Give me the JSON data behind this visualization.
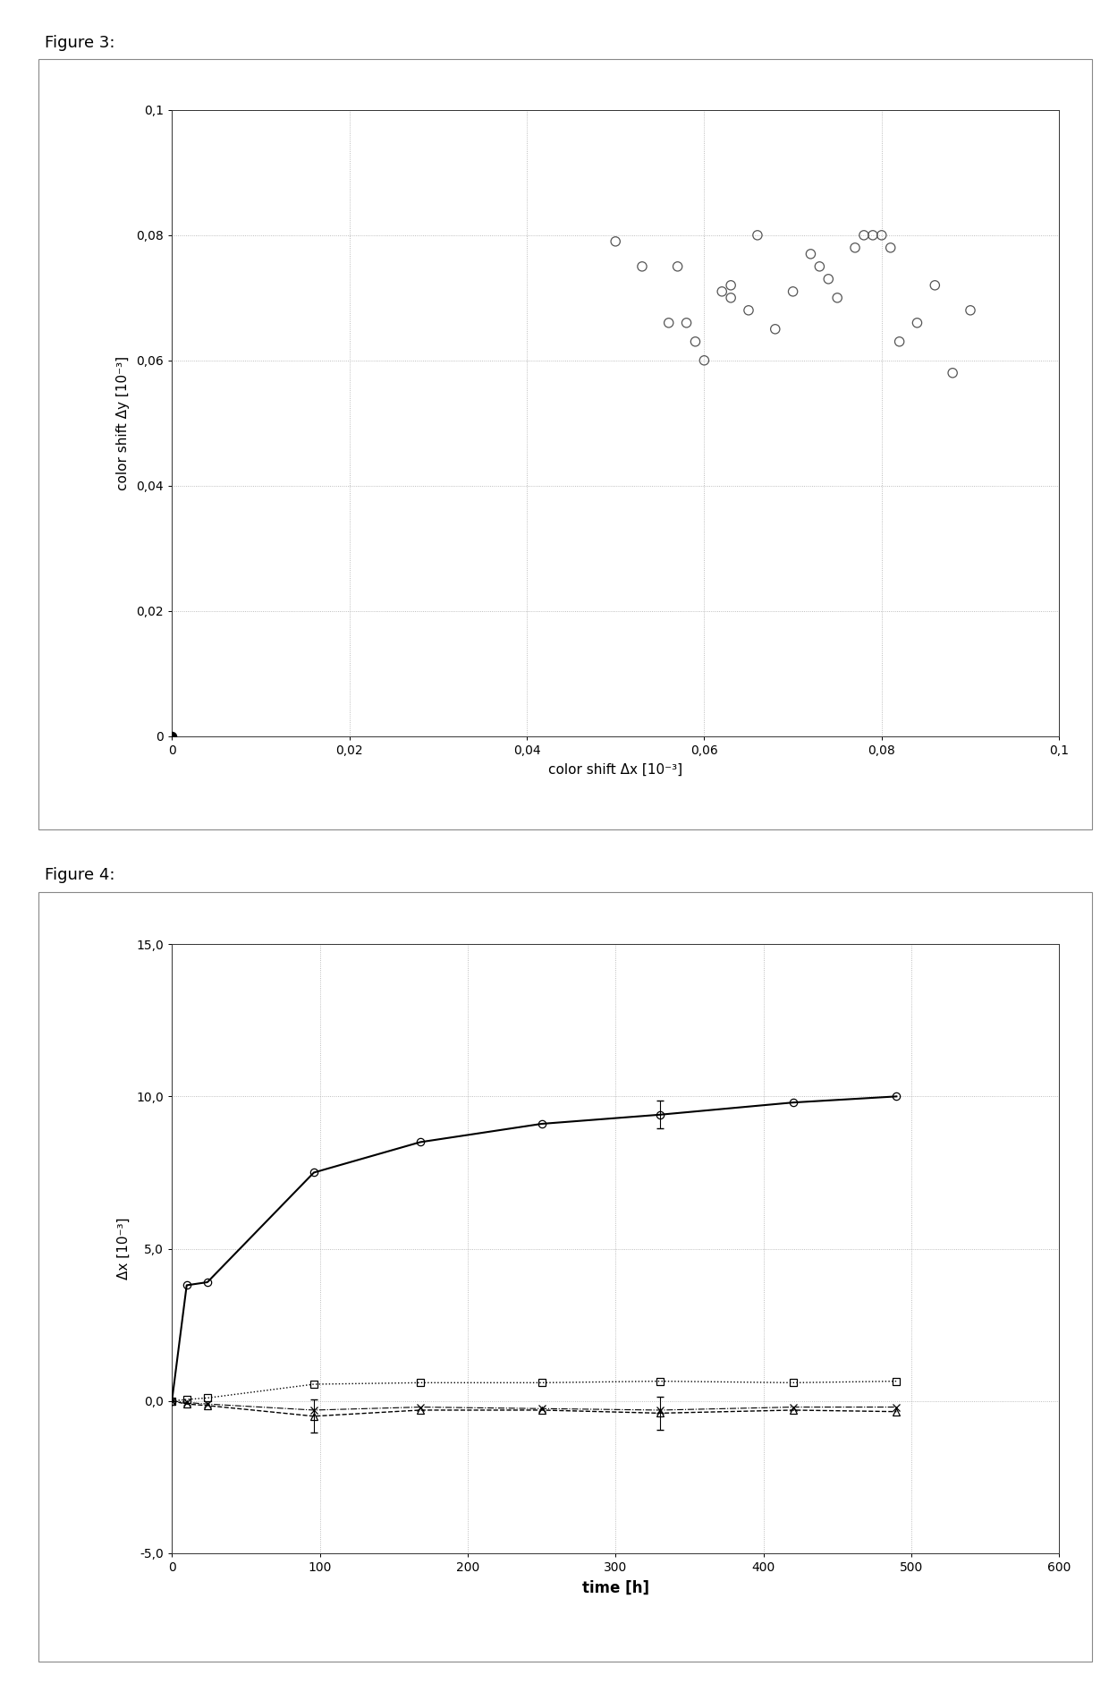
{
  "fig3": {
    "title": "Figure 3:",
    "scatter_open": [
      [
        0.05,
        0.079
      ],
      [
        0.053,
        0.075
      ],
      [
        0.057,
        0.075
      ],
      [
        0.056,
        0.066
      ],
      [
        0.058,
        0.066
      ],
      [
        0.059,
        0.063
      ],
      [
        0.06,
        0.06
      ],
      [
        0.062,
        0.071
      ],
      [
        0.063,
        0.072
      ],
      [
        0.063,
        0.07
      ],
      [
        0.065,
        0.068
      ],
      [
        0.066,
        0.08
      ],
      [
        0.068,
        0.065
      ],
      [
        0.07,
        0.071
      ],
      [
        0.072,
        0.077
      ],
      [
        0.073,
        0.075
      ],
      [
        0.074,
        0.073
      ],
      [
        0.075,
        0.07
      ],
      [
        0.077,
        0.078
      ],
      [
        0.078,
        0.08
      ],
      [
        0.079,
        0.08
      ],
      [
        0.08,
        0.08
      ],
      [
        0.081,
        0.078
      ],
      [
        0.082,
        0.063
      ],
      [
        0.084,
        0.066
      ],
      [
        0.086,
        0.072
      ],
      [
        0.088,
        0.058
      ],
      [
        0.09,
        0.068
      ]
    ],
    "scatter_filled": [
      [
        0.0,
        0.0
      ]
    ],
    "xlabel": "color shift Δx [10⁻³]",
    "ylabel": "color shift Δy [10⁻³]",
    "xlim": [
      0,
      0.1
    ],
    "ylim": [
      0,
      0.1
    ],
    "xticks": [
      0,
      0.02,
      0.04,
      0.06,
      0.08,
      0.1
    ],
    "yticks": [
      0,
      0.02,
      0.04,
      0.06,
      0.08,
      0.1
    ],
    "xticklabels": [
      "0",
      "0,02",
      "0,04",
      "0,06",
      "0,08",
      "0,1"
    ],
    "yticklabels": [
      "0",
      "0,02",
      "0,04",
      "0,06",
      "0,08",
      "0,1"
    ]
  },
  "fig4": {
    "title": "Figure 4:",
    "xlabel": "time [h]",
    "ylabel": "Δx [10⁻³]",
    "xlim": [
      0,
      600
    ],
    "ylim": [
      -5.0,
      15.0
    ],
    "xticks": [
      0,
      100,
      200,
      300,
      400,
      500,
      600
    ],
    "yticks": [
      -5.0,
      0.0,
      5.0,
      10.0,
      15.0
    ],
    "xticklabels": [
      "0",
      "100",
      "200",
      "300",
      "400",
      "500",
      "600"
    ],
    "yticklabels": [
      "-5,0",
      "0,0",
      "5,0",
      "10,0",
      "15,0"
    ],
    "series1": {
      "x": [
        0,
        10,
        24,
        96,
        168,
        250,
        330,
        420,
        490
      ],
      "y": [
        0.0,
        3.8,
        3.9,
        7.5,
        8.5,
        9.1,
        9.4,
        9.8,
        10.0
      ],
      "err_idx": 6,
      "err_val": 0.45,
      "marker": "o",
      "linestyle": "-",
      "color": "#000000",
      "linewidth": 1.5,
      "markersize": 6
    },
    "series2": {
      "x": [
        0,
        10,
        24,
        96,
        168,
        250,
        330,
        420,
        490
      ],
      "y": [
        0.0,
        0.05,
        0.1,
        0.55,
        0.6,
        0.6,
        0.65,
        0.6,
        0.65
      ],
      "marker": "s",
      "linestyle": ":",
      "color": "#000000",
      "linewidth": 1.0,
      "markersize": 6
    },
    "series3": {
      "x": [
        0,
        10,
        24,
        96,
        168,
        250,
        330,
        420,
        490
      ],
      "y": [
        0.0,
        -0.1,
        -0.15,
        -0.5,
        -0.3,
        -0.3,
        -0.4,
        -0.3,
        -0.35
      ],
      "err_indices": [
        3,
        6
      ],
      "err_val": 0.55,
      "marker": "^",
      "linestyle": "--",
      "color": "#000000",
      "linewidth": 1.0,
      "markersize": 6
    },
    "series4": {
      "x": [
        0,
        10,
        24,
        96,
        168,
        250,
        330,
        420,
        490
      ],
      "y": [
        0.0,
        -0.05,
        -0.1,
        -0.3,
        -0.2,
        -0.25,
        -0.3,
        -0.2,
        -0.2
      ],
      "marker": "x",
      "linestyle": "-.",
      "color": "#000000",
      "linewidth": 0.8,
      "markersize": 6
    }
  },
  "background_color": "#ffffff"
}
